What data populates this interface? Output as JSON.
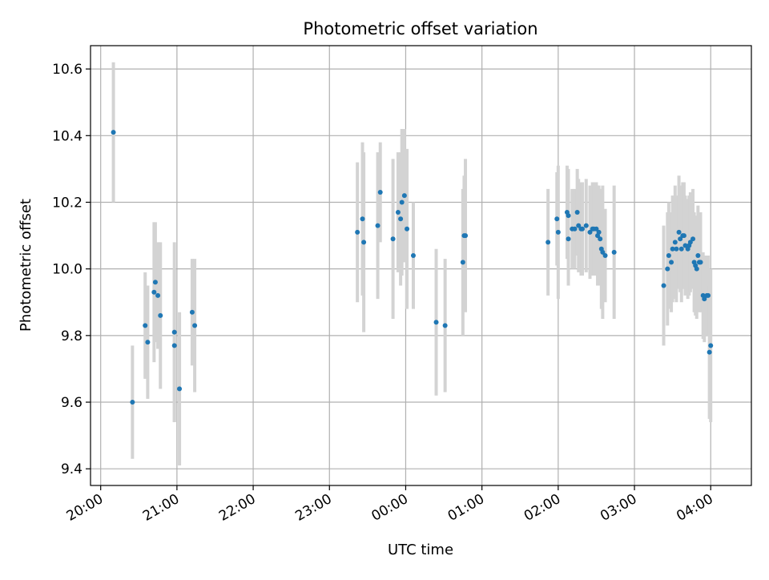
{
  "chart_data": {
    "type": "scatter",
    "title": "Photometric offset variation",
    "xlabel": "UTC time",
    "ylabel": "Photometric offset",
    "grid": true,
    "legend": "none",
    "colors": {
      "points": "#1f77b4",
      "errorbars": "#d3d3d3",
      "grid": "#b0b0b0"
    },
    "xlim": [
      "19:52",
      "04:32"
    ],
    "ylim": [
      9.35,
      10.67
    ],
    "x_ticks": [
      "20:00",
      "21:00",
      "22:00",
      "23:00",
      "00:00",
      "01:00",
      "02:00",
      "03:00",
      "04:00"
    ],
    "y_ticks": [
      "9.4",
      "9.6",
      "9.8",
      "10.0",
      "10.2",
      "10.4",
      "10.6"
    ],
    "series": [
      {
        "x": [
          "20:10",
          "20:25",
          "20:35",
          "20:37",
          "20:42",
          "20:43",
          "20:45",
          "20:47",
          "20:58",
          "20:58",
          "21:02",
          "21:12",
          "21:14",
          "23:22",
          "23:26",
          "23:27",
          "23:38",
          "23:40",
          "23:50",
          "23:54",
          "23:56",
          "23:57",
          "23:59",
          "00:01",
          "00:06",
          "00:24",
          "00:31",
          "00:45",
          "00:46",
          "00:47",
          "01:52",
          "01:59",
          "02:00",
          "02:07",
          "02:08",
          "02:08",
          "02:11",
          "02:13",
          "02:15",
          "02:16",
          "02:18",
          "02:19",
          "02:22",
          "02:25",
          "02:27",
          "02:28",
          "02:30",
          "02:31",
          "02:32",
          "02:33",
          "02:34",
          "02:35",
          "02:37",
          "02:44",
          "03:23",
          "03:26",
          "03:27",
          "03:29",
          "03:30",
          "03:32",
          "03:33",
          "03:35",
          "03:36",
          "03:37",
          "03:38",
          "03:39",
          "03:40",
          "03:42",
          "03:43",
          "03:44",
          "03:46",
          "03:47",
          "03:48",
          "03:49",
          "03:50",
          "03:51",
          "03:52",
          "03:54",
          "03:55",
          "03:57",
          "03:58",
          "03:59",
          "04:00"
        ],
        "y": [
          10.41,
          9.6,
          9.83,
          9.78,
          9.93,
          9.96,
          9.92,
          9.86,
          9.81,
          9.77,
          9.64,
          9.87,
          9.83,
          10.11,
          10.15,
          10.08,
          10.13,
          10.23,
          10.09,
          10.17,
          10.15,
          10.2,
          10.22,
          10.12,
          10.04,
          9.84,
          9.83,
          10.02,
          10.1,
          10.1,
          10.08,
          10.15,
          10.11,
          10.17,
          10.16,
          10.09,
          10.12,
          10.12,
          10.17,
          10.13,
          10.12,
          10.12,
          10.13,
          10.11,
          10.12,
          10.12,
          10.12,
          10.1,
          10.11,
          10.09,
          10.06,
          10.05,
          10.04,
          10.05,
          9.95,
          10.0,
          10.04,
          10.02,
          10.06,
          10.08,
          10.06,
          10.11,
          10.09,
          10.06,
          10.1,
          10.1,
          10.07,
          10.06,
          10.07,
          10.08,
          10.09,
          10.02,
          10.01,
          10.0,
          10.04,
          10.02,
          10.02,
          9.92,
          9.91,
          9.92,
          9.92,
          9.75,
          9.77
        ],
        "yerr": [
          0.21,
          0.17,
          0.16,
          0.17,
          0.21,
          0.18,
          0.16,
          0.22,
          0.27,
          0.23,
          0.23,
          0.16,
          0.2,
          0.21,
          0.23,
          0.27,
          0.22,
          0.15,
          0.24,
          0.18,
          0.2,
          0.22,
          0.2,
          0.24,
          0.16,
          0.22,
          0.2,
          0.22,
          0.18,
          0.23,
          0.16,
          0.14,
          0.2,
          0.14,
          0.14,
          0.14,
          0.12,
          0.12,
          0.13,
          0.14,
          0.14,
          0.14,
          0.14,
          0.14,
          0.14,
          0.14,
          0.14,
          0.15,
          0.14,
          0.14,
          0.18,
          0.2,
          0.14,
          0.2,
          0.18,
          0.17,
          0.16,
          0.15,
          0.16,
          0.17,
          0.16,
          0.17,
          0.16,
          0.16,
          0.16,
          0.16,
          0.15,
          0.15,
          0.15,
          0.15,
          0.15,
          0.15,
          0.15,
          0.15,
          0.15,
          0.15,
          0.15,
          0.13,
          0.13,
          0.12,
          0.12,
          0.2,
          0.23
        ]
      }
    ]
  }
}
